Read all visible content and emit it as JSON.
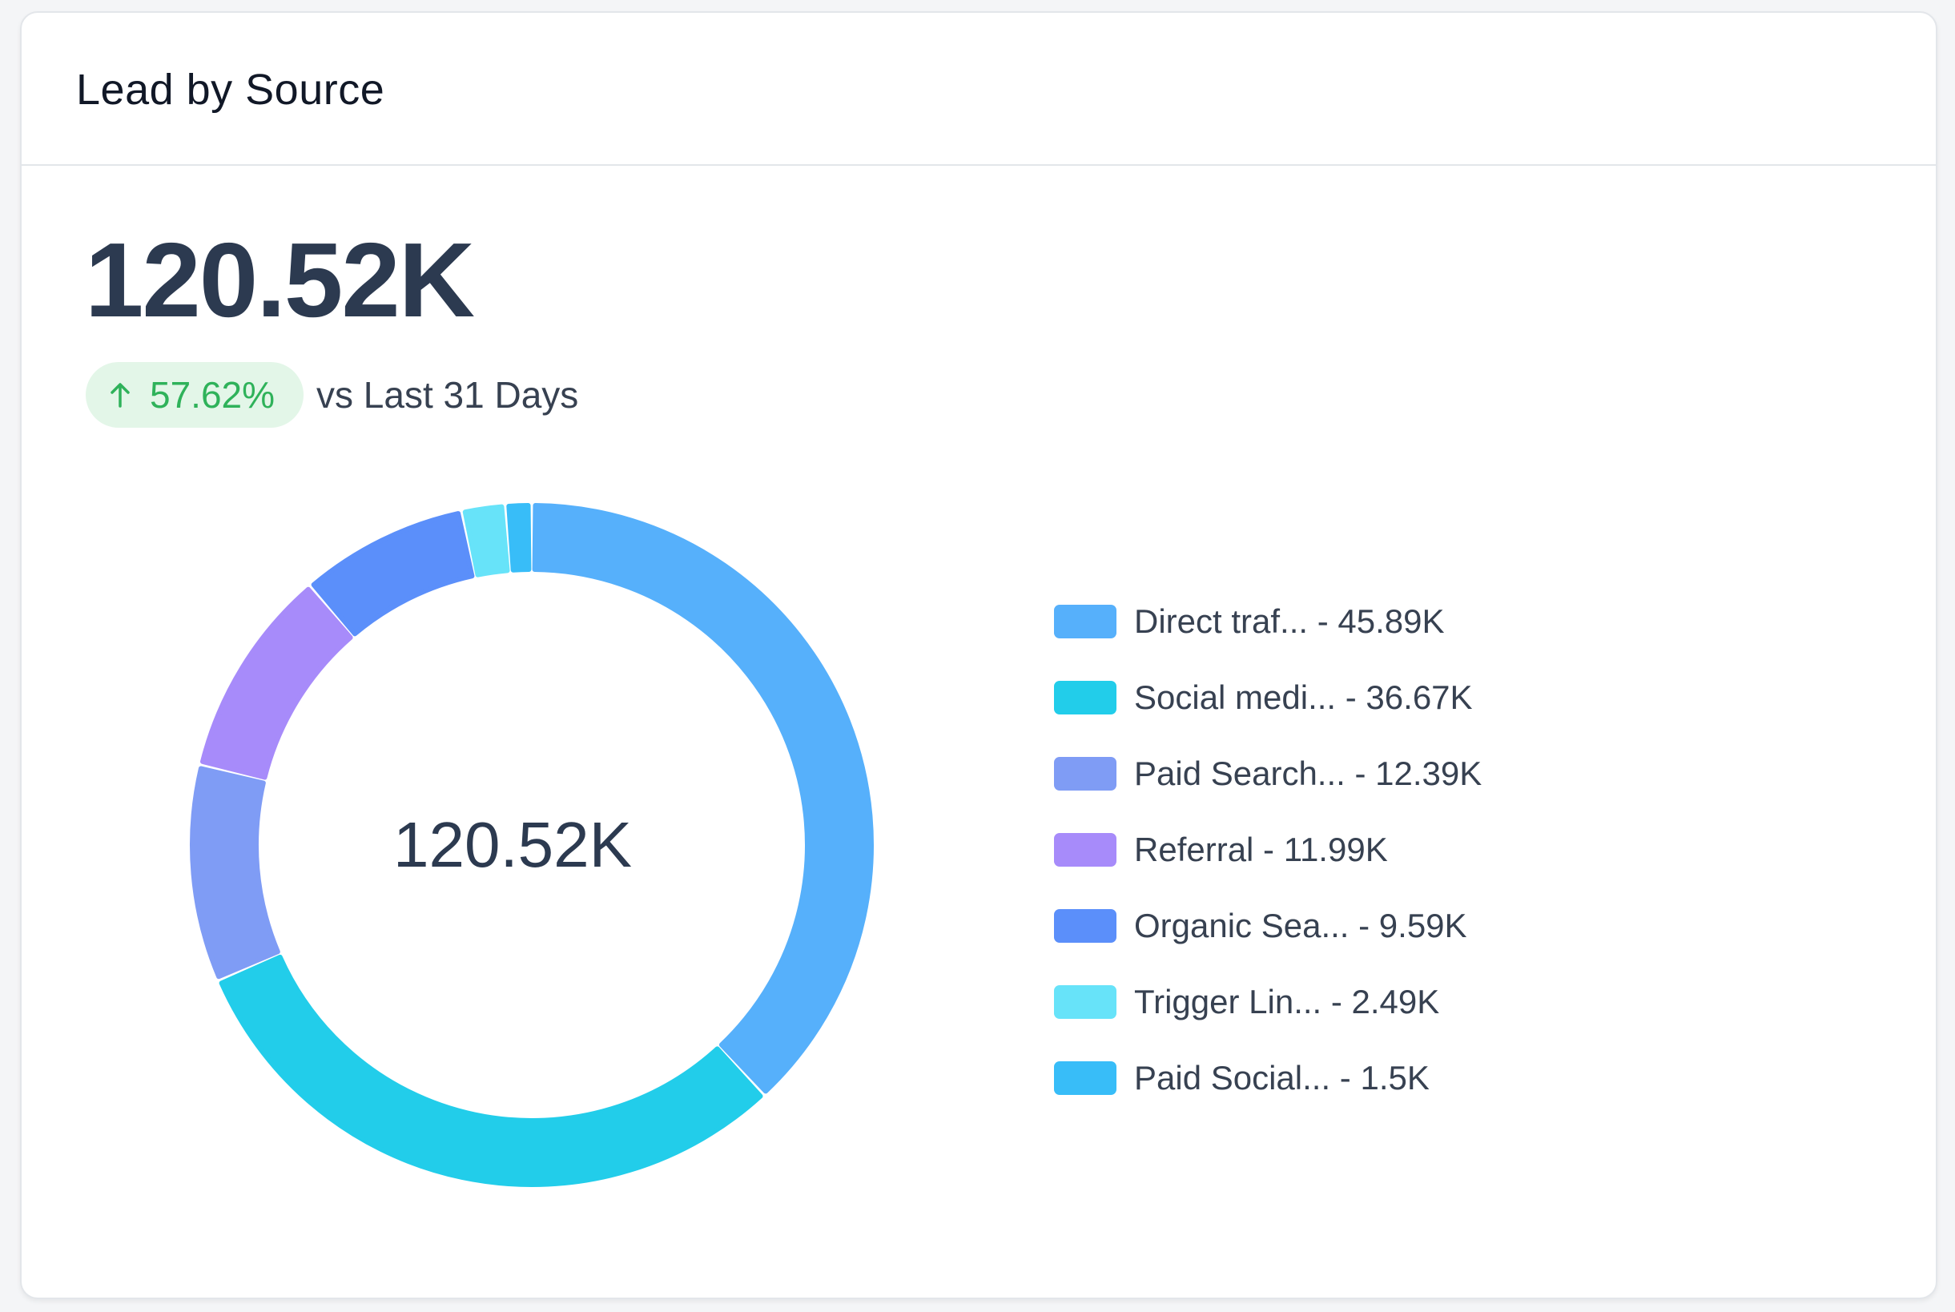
{
  "card": {
    "title": "Lead by Source",
    "total": "120.52K",
    "change_value": "57.62%",
    "change_label": "vs Last 31 Days",
    "change_direction": "up",
    "change_color": "#2fb25a"
  },
  "chart_data": {
    "type": "pie",
    "variant": "donut",
    "center_label": "120.52K",
    "legend_position": "right",
    "series": [
      {
        "name": "Direct traf...",
        "label": "Direct traf... - 45.89K",
        "value": 45.89,
        "color": "#56b0fb"
      },
      {
        "name": "Social medi...",
        "label": "Social medi... - 36.67K",
        "value": 36.67,
        "color": "#22cdea"
      },
      {
        "name": "Paid Search...",
        "label": "Paid Search... - 12.39K",
        "value": 12.39,
        "color": "#7f9cf5"
      },
      {
        "name": "Referral",
        "label": "Referral - 11.99K",
        "value": 11.99,
        "color": "#a78bfa"
      },
      {
        "name": "Organic Sea...",
        "label": "Organic Sea... - 9.59K",
        "value": 9.59,
        "color": "#5b8ffa"
      },
      {
        "name": "Trigger Lin...",
        "label": "Trigger Lin... - 2.49K",
        "value": 2.49,
        "color": "#67e3f9"
      },
      {
        "name": "Paid Social...",
        "label": "Paid Social... - 1.5K",
        "value": 1.5,
        "color": "#38bdf8"
      }
    ]
  }
}
